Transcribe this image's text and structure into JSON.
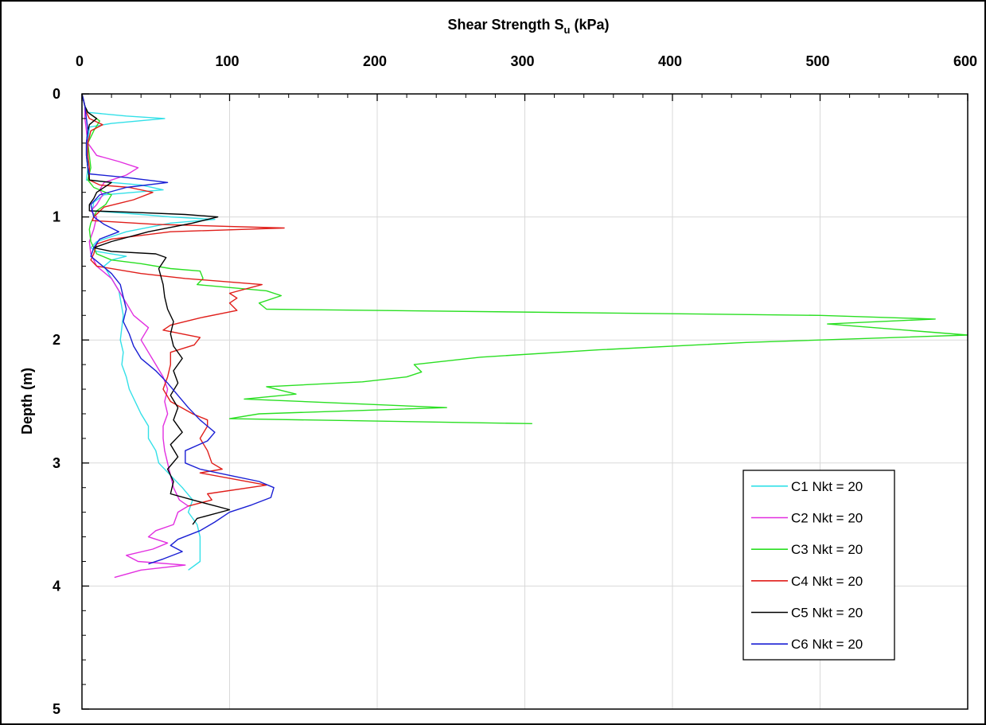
{
  "chart_data": {
    "type": "line",
    "title": "Shear Strength S",
    "title_sub": "u",
    "title_unit": " (kPa)",
    "ylabel": "Depth (m)",
    "xlim": [
      0,
      600
    ],
    "ylim": [
      0,
      5
    ],
    "y_inverted": true,
    "x_axis_position": "top",
    "x_ticks": [
      "0",
      "100",
      "200",
      "300",
      "400",
      "500",
      "600"
    ],
    "y_ticks": [
      "0",
      "1",
      "2",
      "3",
      "4",
      "5"
    ],
    "grid": true,
    "legend_position": "right",
    "series": [
      {
        "name": "C1  Nkt = 20",
        "color": "#33e0e8",
        "points": [
          [
            0,
            0
          ],
          [
            1,
            0.05
          ],
          [
            2,
            0.1
          ],
          [
            4,
            0.15
          ],
          [
            30,
            0.18
          ],
          [
            56,
            0.2
          ],
          [
            20,
            0.24
          ],
          [
            5,
            0.27
          ],
          [
            4,
            0.4
          ],
          [
            4,
            0.6
          ],
          [
            3,
            0.7
          ],
          [
            20,
            0.72
          ],
          [
            40,
            0.74
          ],
          [
            55,
            0.78
          ],
          [
            15,
            0.82
          ],
          [
            8,
            0.88
          ],
          [
            7,
            0.95
          ],
          [
            40,
            0.98
          ],
          [
            60,
            1.0
          ],
          [
            90,
            1.02
          ],
          [
            60,
            1.05
          ],
          [
            30,
            1.12
          ],
          [
            10,
            1.2
          ],
          [
            6,
            1.25
          ],
          [
            10,
            1.28
          ],
          [
            30,
            1.32
          ],
          [
            20,
            1.35
          ],
          [
            15,
            1.4
          ],
          [
            20,
            1.5
          ],
          [
            25,
            1.6
          ],
          [
            28,
            1.8
          ],
          [
            26,
            2.0
          ],
          [
            28,
            2.1
          ],
          [
            27,
            2.2
          ],
          [
            30,
            2.3
          ],
          [
            32,
            2.4
          ],
          [
            36,
            2.5
          ],
          [
            40,
            2.6
          ],
          [
            45,
            2.7
          ],
          [
            45,
            2.8
          ],
          [
            50,
            2.9
          ],
          [
            52,
            3.0
          ],
          [
            60,
            3.1
          ],
          [
            68,
            3.2
          ],
          [
            75,
            3.3
          ],
          [
            72,
            3.4
          ],
          [
            78,
            3.5
          ],
          [
            80,
            3.6
          ],
          [
            80,
            3.7
          ],
          [
            80,
            3.8
          ],
          [
            72,
            3.87
          ]
        ]
      },
      {
        "name": "C2  Nkt = 20",
        "color": "#e22fe0",
        "points": [
          [
            0,
            0
          ],
          [
            2,
            0.1
          ],
          [
            2,
            0.2
          ],
          [
            3,
            0.3
          ],
          [
            4,
            0.4
          ],
          [
            10,
            0.5
          ],
          [
            25,
            0.55
          ],
          [
            38,
            0.6
          ],
          [
            30,
            0.66
          ],
          [
            15,
            0.72
          ],
          [
            12,
            0.78
          ],
          [
            14,
            0.82
          ],
          [
            10,
            0.9
          ],
          [
            6,
            0.95
          ],
          [
            10,
            1.0
          ],
          [
            8,
            1.1
          ],
          [
            5,
            1.2
          ],
          [
            6,
            1.3
          ],
          [
            10,
            1.4
          ],
          [
            20,
            1.5
          ],
          [
            25,
            1.6
          ],
          [
            30,
            1.7
          ],
          [
            35,
            1.8
          ],
          [
            45,
            1.9
          ],
          [
            40,
            2.0
          ],
          [
            45,
            2.1
          ],
          [
            50,
            2.2
          ],
          [
            55,
            2.3
          ],
          [
            58,
            2.4
          ],
          [
            56,
            2.5
          ],
          [
            58,
            2.6
          ],
          [
            55,
            2.7
          ],
          [
            55,
            2.8
          ],
          [
            56,
            2.9
          ],
          [
            58,
            3.0
          ],
          [
            60,
            3.1
          ],
          [
            62,
            3.2
          ],
          [
            66,
            3.3
          ],
          [
            72,
            3.35
          ],
          [
            65,
            3.4
          ],
          [
            62,
            3.5
          ],
          [
            50,
            3.55
          ],
          [
            45,
            3.6
          ],
          [
            58,
            3.65
          ],
          [
            48,
            3.7
          ],
          [
            30,
            3.75
          ],
          [
            38,
            3.8
          ],
          [
            70,
            3.83
          ],
          [
            40,
            3.87
          ],
          [
            22,
            3.93
          ]
        ]
      },
      {
        "name": "C3  Nkt = 20",
        "color": "#2adf22",
        "points": [
          [
            0,
            0
          ],
          [
            1,
            0.05
          ],
          [
            2,
            0.1
          ],
          [
            4,
            0.15
          ],
          [
            12,
            0.22
          ],
          [
            8,
            0.3
          ],
          [
            4,
            0.4
          ],
          [
            5,
            0.5
          ],
          [
            6,
            0.6
          ],
          [
            4,
            0.7
          ],
          [
            8,
            0.76
          ],
          [
            20,
            0.82
          ],
          [
            16,
            0.9
          ],
          [
            10,
            0.95
          ],
          [
            8,
            1.0
          ],
          [
            6,
            1.05
          ],
          [
            5,
            1.1
          ],
          [
            6,
            1.2
          ],
          [
            10,
            1.3
          ],
          [
            20,
            1.35
          ],
          [
            40,
            1.38
          ],
          [
            60,
            1.42
          ],
          [
            80,
            1.44
          ],
          [
            82,
            1.5
          ],
          [
            78,
            1.55
          ],
          [
            125,
            1.6
          ],
          [
            135,
            1.64
          ],
          [
            120,
            1.7
          ],
          [
            125,
            1.75
          ],
          [
            500,
            1.8
          ],
          [
            578,
            1.83
          ],
          [
            505,
            1.87
          ],
          [
            600,
            1.96
          ],
          [
            450,
            2.02
          ],
          [
            350,
            2.08
          ],
          [
            270,
            2.14
          ],
          [
            225,
            2.2
          ],
          [
            230,
            2.26
          ],
          [
            220,
            2.3
          ],
          [
            190,
            2.34
          ],
          [
            125,
            2.38
          ],
          [
            145,
            2.44
          ],
          [
            110,
            2.48
          ],
          [
            247,
            2.55
          ],
          [
            120,
            2.6
          ],
          [
            100,
            2.64
          ],
          [
            305,
            2.68
          ]
        ]
      },
      {
        "name": "C4  Nkt = 20",
        "color": "#e01e1a",
        "points": [
          [
            0,
            0
          ],
          [
            1,
            0.05
          ],
          [
            2,
            0.1
          ],
          [
            3,
            0.15
          ],
          [
            5,
            0.2
          ],
          [
            14,
            0.25
          ],
          [
            6,
            0.3
          ],
          [
            4,
            0.4
          ],
          [
            4,
            0.5
          ],
          [
            5,
            0.6
          ],
          [
            5,
            0.7
          ],
          [
            12,
            0.74
          ],
          [
            32,
            0.76
          ],
          [
            48,
            0.8
          ],
          [
            35,
            0.86
          ],
          [
            15,
            0.92
          ],
          [
            8,
            1.0
          ],
          [
            7,
            1.03
          ],
          [
            50,
            1.06
          ],
          [
            137,
            1.09
          ],
          [
            60,
            1.12
          ],
          [
            20,
            1.18
          ],
          [
            10,
            1.22
          ],
          [
            8,
            1.3
          ],
          [
            6,
            1.35
          ],
          [
            10,
            1.4
          ],
          [
            40,
            1.46
          ],
          [
            70,
            1.5
          ],
          [
            122,
            1.55
          ],
          [
            100,
            1.62
          ],
          [
            105,
            1.66
          ],
          [
            100,
            1.7
          ],
          [
            105,
            1.76
          ],
          [
            80,
            1.82
          ],
          [
            60,
            1.88
          ],
          [
            55,
            1.92
          ],
          [
            80,
            1.98
          ],
          [
            76,
            2.04
          ],
          [
            60,
            2.1
          ],
          [
            60,
            2.2
          ],
          [
            58,
            2.3
          ],
          [
            55,
            2.4
          ],
          [
            60,
            2.5
          ],
          [
            75,
            2.6
          ],
          [
            85,
            2.65
          ],
          [
            85,
            2.7
          ],
          [
            80,
            2.8
          ],
          [
            85,
            2.9
          ],
          [
            88,
            3.0
          ],
          [
            95,
            3.05
          ],
          [
            80,
            3.08
          ],
          [
            125,
            3.18
          ],
          [
            85,
            3.25
          ],
          [
            88,
            3.3
          ],
          [
            72,
            3.35
          ]
        ]
      },
      {
        "name": "C5  Nkt = 20",
        "color": "#000000",
        "points": [
          [
            0,
            0
          ],
          [
            1,
            0.05
          ],
          [
            2,
            0.1
          ],
          [
            4,
            0.15
          ],
          [
            10,
            0.2
          ],
          [
            5,
            0.25
          ],
          [
            4,
            0.3
          ],
          [
            3,
            0.4
          ],
          [
            3,
            0.5
          ],
          [
            4,
            0.6
          ],
          [
            5,
            0.7
          ],
          [
            20,
            0.72
          ],
          [
            10,
            0.8
          ],
          [
            8,
            0.85
          ],
          [
            5,
            0.9
          ],
          [
            5,
            0.95
          ],
          [
            30,
            0.96
          ],
          [
            70,
            0.98
          ],
          [
            92,
            1.0
          ],
          [
            75,
            1.05
          ],
          [
            45,
            1.12
          ],
          [
            20,
            1.2
          ],
          [
            8,
            1.25
          ],
          [
            20,
            1.28
          ],
          [
            50,
            1.3
          ],
          [
            57,
            1.33
          ],
          [
            52,
            1.42
          ],
          [
            55,
            1.55
          ],
          [
            56,
            1.65
          ],
          [
            58,
            1.75
          ],
          [
            62,
            1.85
          ],
          [
            60,
            1.95
          ],
          [
            62,
            2.05
          ],
          [
            68,
            2.15
          ],
          [
            62,
            2.25
          ],
          [
            65,
            2.35
          ],
          [
            60,
            2.45
          ],
          [
            65,
            2.55
          ],
          [
            62,
            2.65
          ],
          [
            68,
            2.75
          ],
          [
            60,
            2.85
          ],
          [
            65,
            2.95
          ],
          [
            58,
            3.05
          ],
          [
            62,
            3.15
          ],
          [
            60,
            3.25
          ],
          [
            75,
            3.3
          ],
          [
            100,
            3.38
          ],
          [
            78,
            3.45
          ],
          [
            75,
            3.5
          ]
        ]
      },
      {
        "name": "C6  Nkt = 20",
        "color": "#1a1fd4",
        "points": [
          [
            0,
            0
          ],
          [
            1,
            0.05
          ],
          [
            2,
            0.1
          ],
          [
            3,
            0.2
          ],
          [
            4,
            0.3
          ],
          [
            3,
            0.4
          ],
          [
            3,
            0.5
          ],
          [
            4,
            0.6
          ],
          [
            5,
            0.65
          ],
          [
            30,
            0.68
          ],
          [
            58,
            0.72
          ],
          [
            30,
            0.76
          ],
          [
            12,
            0.82
          ],
          [
            6,
            0.9
          ],
          [
            8,
            1.0
          ],
          [
            15,
            1.06
          ],
          [
            25,
            1.12
          ],
          [
            12,
            1.18
          ],
          [
            8,
            1.25
          ],
          [
            6,
            1.32
          ],
          [
            12,
            1.38
          ],
          [
            20,
            1.46
          ],
          [
            26,
            1.55
          ],
          [
            28,
            1.65
          ],
          [
            30,
            1.75
          ],
          [
            28,
            1.85
          ],
          [
            32,
            1.95
          ],
          [
            35,
            2.05
          ],
          [
            40,
            2.15
          ],
          [
            50,
            2.25
          ],
          [
            58,
            2.35
          ],
          [
            65,
            2.45
          ],
          [
            72,
            2.55
          ],
          [
            80,
            2.65
          ],
          [
            90,
            2.75
          ],
          [
            85,
            2.82
          ],
          [
            70,
            2.9
          ],
          [
            70,
            3.0
          ],
          [
            80,
            3.05
          ],
          [
            100,
            3.1
          ],
          [
            120,
            3.15
          ],
          [
            130,
            3.2
          ],
          [
            128,
            3.28
          ],
          [
            115,
            3.34
          ],
          [
            100,
            3.4
          ],
          [
            90,
            3.48
          ],
          [
            80,
            3.55
          ],
          [
            65,
            3.62
          ],
          [
            60,
            3.67
          ],
          [
            68,
            3.72
          ],
          [
            55,
            3.78
          ],
          [
            45,
            3.82
          ]
        ]
      }
    ]
  }
}
